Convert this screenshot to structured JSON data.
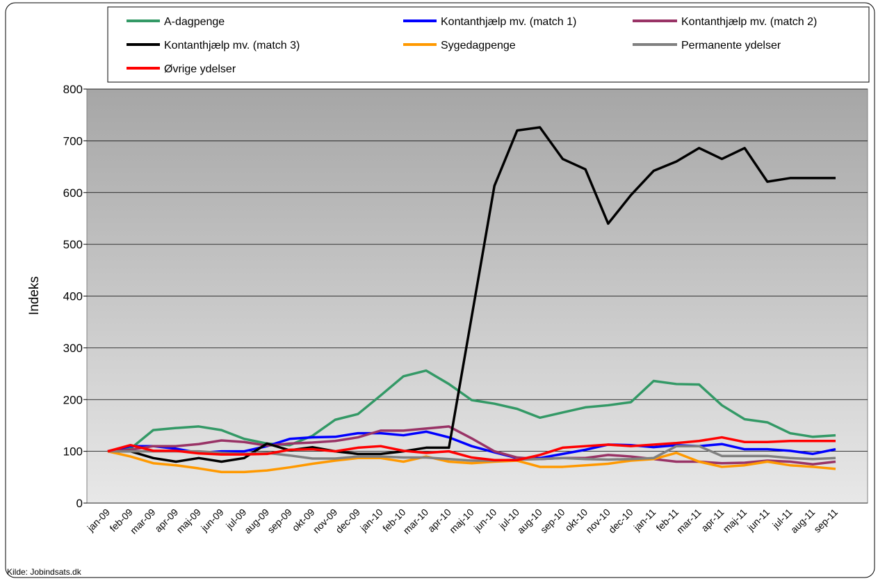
{
  "chart_data": {
    "type": "line",
    "y_label": "Indeks",
    "source": "Kilde: Jobindsats.dk",
    "categories": [
      "jan-09",
      "feb-09",
      "mar-09",
      "apr-09",
      "maj-09",
      "jun-09",
      "jul-09",
      "aug-09",
      "sep-09",
      "okt-09",
      "nov-09",
      "dec-09",
      "jan-10",
      "feb-10",
      "mar-10",
      "apr-10",
      "maj-10",
      "jun-10",
      "jul-10",
      "aug-10",
      "sep-10",
      "okt-10",
      "nov-10",
      "dec-10",
      "jan-11",
      "feb-11",
      "mar-11",
      "apr-11",
      "maj-11",
      "jun-11",
      "jul-11",
      "aug-11",
      "sep-11"
    ],
    "series": [
      {
        "name": "A-dagpenge",
        "color": "#339966",
        "values": [
          100,
          105,
          141,
          145,
          148,
          141,
          124,
          115,
          112,
          130,
          161,
          172,
          208,
          245,
          256,
          230,
          199,
          192,
          182,
          165,
          175,
          185,
          189,
          195,
          236,
          230,
          229,
          189,
          162,
          156,
          135,
          128,
          131
        ]
      },
      {
        "name": "Kontanthjælp mv. (match 1)",
        "color": "#0000ff",
        "values": [
          100,
          110,
          110,
          105,
          97,
          100,
          100,
          110,
          124,
          127,
          128,
          135,
          135,
          131,
          138,
          127,
          110,
          98,
          87,
          87,
          95,
          103,
          113,
          112,
          108,
          112,
          110,
          114,
          104,
          104,
          101,
          95,
          104
        ]
      },
      {
        "name": "Kontanthjælp mv. (match 2)",
        "color": "#993366",
        "values": [
          100,
          103,
          110,
          110,
          114,
          121,
          118,
          111,
          115,
          117,
          120,
          127,
          140,
          140,
          144,
          148,
          125,
          100,
          88,
          85,
          87,
          87,
          93,
          90,
          85,
          80,
          80,
          77,
          78,
          82,
          80,
          75,
          80
        ]
      },
      {
        "name": "Kontanthjælp mv. (match 3)",
        "color": "#000000",
        "values": [
          100,
          100,
          87,
          80,
          87,
          80,
          87,
          115,
          102,
          108,
          100,
          95,
          95,
          100,
          107,
          107,
          360,
          613,
          720,
          726,
          665,
          645,
          540,
          595,
          642,
          660,
          686,
          665,
          686,
          621,
          628,
          628,
          628
        ]
      },
      {
        "name": "Sygedagpenge",
        "color": "#ff9900",
        "values": [
          100,
          90,
          77,
          73,
          67,
          60,
          60,
          63,
          69,
          76,
          82,
          87,
          87,
          80,
          90,
          80,
          77,
          80,
          82,
          70,
          70,
          73,
          76,
          82,
          85,
          97,
          80,
          70,
          73,
          80,
          73,
          70,
          66
        ]
      },
      {
        "name": "Permanente ydelser",
        "color": "#808080",
        "values": [
          100,
          100,
          100,
          100,
          100,
          97,
          95,
          97,
          92,
          86,
          86,
          90,
          90,
          88,
          88,
          85,
          82,
          82,
          84,
          85,
          87,
          85,
          84,
          85,
          87,
          110,
          110,
          91,
          91,
          91,
          87,
          85,
          87
        ]
      },
      {
        "name": "Øvrige ydelser",
        "color": "#ff0000",
        "values": [
          100,
          112,
          101,
          101,
          96,
          94,
          94,
          95,
          103,
          104,
          100,
          107,
          110,
          101,
          97,
          100,
          88,
          83,
          83,
          93,
          107,
          110,
          113,
          110,
          113,
          116,
          120,
          127,
          118,
          118,
          120,
          120,
          120
        ]
      }
    ],
    "ylim": [
      0,
      800
    ],
    "yticks": [
      0,
      100,
      200,
      300,
      400,
      500,
      600,
      700,
      800
    ],
    "grid": true,
    "legend": "top"
  }
}
